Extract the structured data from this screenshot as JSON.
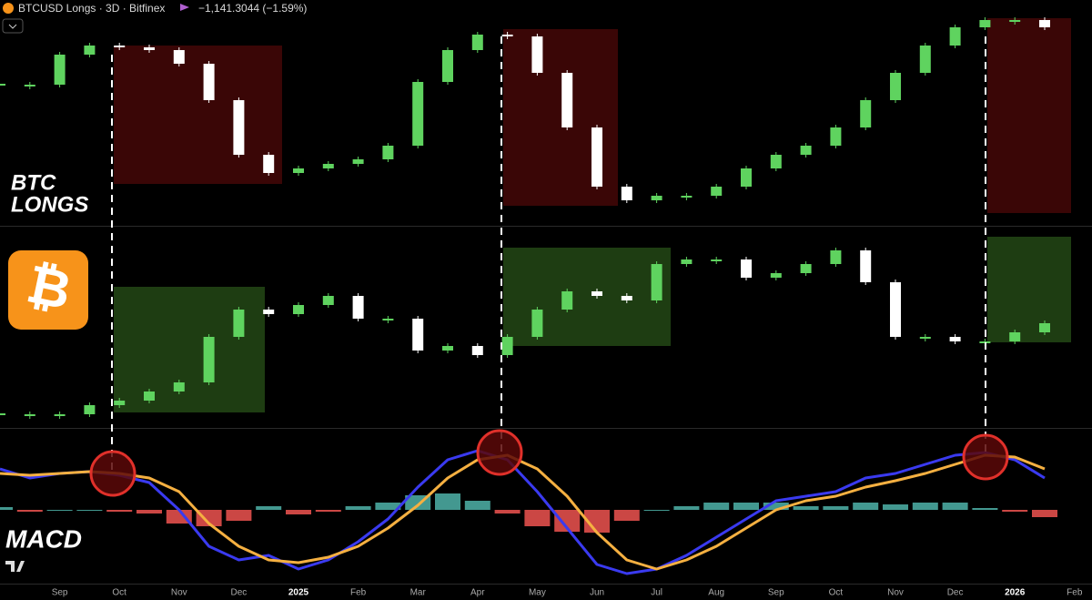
{
  "header": {
    "symbol": "BTCUSD Longs · 3D · Bitfinex",
    "change": "−1,141.3044 (−1.59%)",
    "logo": "₿"
  },
  "time_axis": {
    "categories": [
      null,
      null,
      "Sep",
      null,
      "Oct",
      null,
      "Nov",
      null,
      "Dec",
      null,
      "2025",
      null,
      "Feb",
      null,
      "Mar",
      null,
      "Apr",
      null,
      "May",
      null,
      "Jun",
      null,
      "Jul",
      null,
      "Aug",
      null,
      "Sep",
      null,
      "Oct",
      null,
      "Nov",
      null,
      "Dec",
      null,
      "2026",
      null,
      "Feb"
    ]
  },
  "chart_data": [
    {
      "type": "candlestick",
      "title_lines": [
        "BTC",
        "LONGS"
      ],
      "ylim": [
        0,
        248
      ],
      "up_color": "#5fd35f",
      "down_color": "#ffffff",
      "values": [
        155,
        155,
        188,
        198,
        196,
        193,
        178,
        138,
        78,
        58,
        63,
        68,
        73,
        88,
        158,
        193,
        210,
        208,
        168,
        108,
        43,
        28,
        33,
        33,
        43,
        63,
        78,
        88,
        108,
        138,
        168,
        198,
        218,
        226,
        226,
        218,
        null
      ]
    },
    {
      "type": "candlestick",
      "ylim": [
        0,
        221
      ],
      "up_color": "#5fd35f",
      "down_color": "#ffffff",
      "values": [
        15,
        15,
        15,
        25,
        30,
        40,
        50,
        100,
        130,
        125,
        135,
        145,
        120,
        120,
        85,
        90,
        80,
        100,
        130,
        150,
        145,
        140,
        180,
        185,
        185,
        165,
        170,
        180,
        195,
        160,
        100,
        100,
        95,
        95,
        105,
        115,
        null
      ]
    },
    {
      "type": "macd",
      "title": "MACD",
      "ylim": [
        -80,
        89
      ],
      "hist_up_color": "#4fb3a9",
      "hist_down_color": "#ef5350",
      "series": [
        {
          "color": "#3a3af0",
          "values": [
            45,
            35,
            40,
            42,
            38,
            30,
            0,
            -40,
            -55,
            -50,
            -65,
            -55,
            -35,
            -10,
            25,
            55,
            65,
            55,
            20,
            -20,
            -60,
            -70,
            -65,
            -50,
            -30,
            -10,
            10,
            15,
            20,
            35,
            40,
            50,
            60,
            63,
            55,
            35,
            null
          ]
        },
        {
          "color": "#f5b041",
          "values": [
            40,
            38,
            40,
            42,
            40,
            35,
            20,
            -15,
            -40,
            -55,
            -58,
            -52,
            -40,
            -20,
            5,
            35,
            55,
            60,
            45,
            15,
            -25,
            -55,
            -65,
            -55,
            -40,
            -20,
            0,
            10,
            15,
            25,
            32,
            40,
            50,
            60,
            58,
            45,
            null
          ]
        }
      ],
      "histogram": [
        3,
        -2,
        0,
        0,
        -2,
        -4,
        -15,
        -18,
        -12,
        4,
        -5,
        -2,
        4,
        8,
        16,
        18,
        10,
        -4,
        -18,
        -24,
        -25,
        -12,
        0,
        4,
        8,
        8,
        8,
        4,
        4,
        8,
        6,
        8,
        8,
        2,
        -2,
        -8,
        null
      ]
    }
  ]
}
